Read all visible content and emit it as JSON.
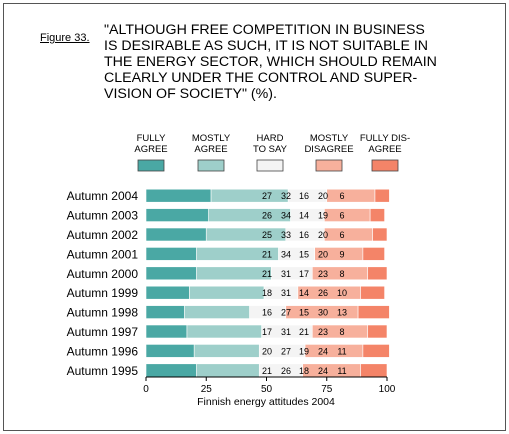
{
  "figure_label": "Figure 33.",
  "title": "\"ALTHOUGH FREE COMPETITION IN BUSINESS\nIS DESIRABLE AS SUCH, IT IS NOT SUITABLE IN\nTHE ENERGY SECTOR, WHICH SHOULD REMAIN\nCLEARLY UNDER THE CONTROL AND SUPER-\nVISION OF SOCIETY\" (%).",
  "chart_data": {
    "type": "bar",
    "orientation": "horizontal",
    "stacked": true,
    "xlabel": "Finnish energy attitudes 2004",
    "xlim": [
      0,
      100
    ],
    "xticks": [
      0,
      25,
      50,
      75,
      100
    ],
    "legend_position": "top",
    "categories": [
      "Autumn 2004",
      "Autumn 2003",
      "Autumn 2002",
      "Autumn 2001",
      "Autumn 2000",
      "Autumn 1999",
      "Autumn 1998",
      "Autumn 1997",
      "Autumn 1996",
      "Autumn 1995"
    ],
    "series": [
      {
        "name": "FULLY\nAGREE",
        "color": "#4aa8a4",
        "values": [
          27,
          26,
          25,
          21,
          21,
          18,
          16,
          17,
          20,
          21
        ]
      },
      {
        "name": "MOSTLY\nAGREE",
        "color": "#9ecfca",
        "values": [
          32,
          34,
          33,
          34,
          31,
          31,
          27,
          31,
          27,
          26
        ]
      },
      {
        "name": "HARD\nTO SAY",
        "color": "#f4f4f4",
        "values": [
          16,
          14,
          16,
          15,
          17,
          14,
          15,
          21,
          19,
          18
        ]
      },
      {
        "name": "MOSTLY\nDISAGREE",
        "color": "#f7b09c",
        "values": [
          20,
          19,
          20,
          20,
          23,
          26,
          30,
          23,
          24,
          24
        ]
      },
      {
        "name": "FULLY DIS-\nAGREE",
        "color": "#f48468",
        "values": [
          6,
          6,
          6,
          9,
          8,
          10,
          13,
          8,
          11,
          11
        ]
      }
    ]
  }
}
